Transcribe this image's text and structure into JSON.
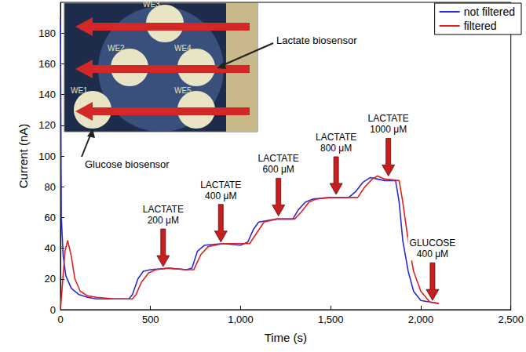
{
  "chart_data": {
    "type": "line",
    "x_label": "Time (s)",
    "y_label": "Current (nA)",
    "xlim": [
      0,
      2500
    ],
    "xticks": [
      0,
      500,
      1000,
      1500,
      2000,
      2500
    ],
    "ylim": [
      0,
      200
    ],
    "yticks": [
      0,
      20,
      40,
      60,
      80,
      100,
      120,
      140,
      160,
      180
    ],
    "legend": "top-right",
    "series": [
      {
        "name": "not filtered",
        "color": "#2b2bd6",
        "x": [
          0,
          5,
          15,
          30,
          60,
          100,
          150,
          200,
          300,
          380,
          400,
          430,
          460,
          500,
          600,
          700,
          730,
          760,
          800,
          900,
          1000,
          1040,
          1070,
          1100,
          1200,
          1290,
          1320,
          1360,
          1400,
          1500,
          1600,
          1640,
          1680,
          1720,
          1760,
          1800,
          1860,
          1880,
          1900,
          1930,
          1960,
          2000,
          2050,
          2100
        ],
        "values": [
          190,
          60,
          35,
          22,
          14,
          10,
          8,
          7,
          7,
          7,
          10,
          20,
          25,
          26,
          27,
          26,
          27,
          38,
          42,
          43,
          42,
          44,
          52,
          57,
          59,
          59,
          65,
          70,
          72,
          73,
          73,
          77,
          83,
          86,
          85,
          84,
          84,
          70,
          45,
          25,
          12,
          6,
          5,
          4
        ]
      },
      {
        "name": "filtered",
        "color": "#e02020",
        "x": [
          0,
          10,
          25,
          40,
          60,
          80,
          110,
          150,
          200,
          300,
          400,
          420,
          450,
          490,
          530,
          600,
          700,
          740,
          780,
          820,
          900,
          1000,
          1050,
          1090,
          1130,
          1200,
          1300,
          1340,
          1380,
          1420,
          1500,
          1650,
          1690,
          1730,
          1760,
          1800,
          1880,
          1900,
          1930,
          1960,
          2000,
          2050,
          2100
        ],
        "values": [
          0,
          15,
          38,
          45,
          35,
          20,
          12,
          9,
          8,
          7,
          7,
          10,
          18,
          24,
          26,
          27,
          26,
          26,
          36,
          41,
          43,
          43,
          43,
          50,
          57,
          59,
          59,
          64,
          70,
          72,
          73,
          73,
          80,
          85,
          87,
          85,
          84,
          70,
          45,
          25,
          12,
          5,
          4
        ]
      }
    ],
    "annotations": [
      {
        "text": "LACTATE 200 μM",
        "x": 570,
        "y": 27
      },
      {
        "text": "LACTATE 400 μM",
        "x": 890,
        "y": 43
      },
      {
        "text": "LACTATE 600 μM",
        "x": 1210,
        "y": 60
      },
      {
        "text": "LACTATE 800 μM",
        "x": 1530,
        "y": 74
      },
      {
        "text": "LACTATE 1000 μM",
        "x": 1820,
        "y": 86
      },
      {
        "text": "GLUCOSE 400 μM",
        "x": 2065,
        "y": 5
      }
    ],
    "inset": {
      "electrodes": [
        "WE1",
        "WE2",
        "WE3",
        "WE4",
        "WE5"
      ],
      "labels": [
        "Lactate biosensor",
        "Glucose biosensor"
      ]
    }
  }
}
